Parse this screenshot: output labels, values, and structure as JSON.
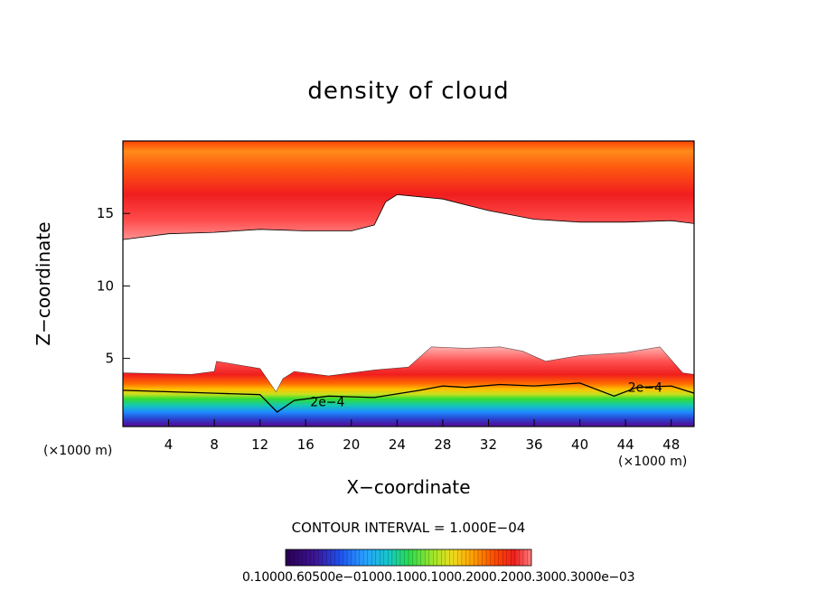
{
  "chart_data": {
    "type": "heatmap",
    "title": "density of cloud",
    "xlabel": "X−coordinate",
    "ylabel": "Z−coordinate",
    "x_unit": "(×1000 m)",
    "z_unit": "(×1000 m)",
    "xlim": [
      0,
      50
    ],
    "ylim": [
      0.3,
      20
    ],
    "x_ticks": [
      4,
      8,
      12,
      16,
      20,
      24,
      28,
      32,
      36,
      40,
      44,
      48
    ],
    "y_ticks": [
      5,
      10,
      15
    ],
    "contour_interval_label": "CONTOUR INTERVAL = 1.000E−04",
    "contour_labels": [
      "2e−4",
      "2e−4"
    ],
    "contour_label_positions": [
      [
        16.4,
        2.0
      ],
      [
        44.2,
        3.0
      ]
    ],
    "colorbar_labels": "0.10000.60500e−01000.1000.1000.2000.2000.3000.3000e−03",
    "colorbar_colors": [
      "#2a0050",
      "#3c1496",
      "#1e3cdc",
      "#1e8cff",
      "#14c8c8",
      "#14dc50",
      "#78e628",
      "#dcdc1e",
      "#ffb400",
      "#ff6e00",
      "#ff2800",
      "#f01e1e",
      "#ff7878",
      "#ffb4b4"
    ],
    "upper_layer": {
      "top": 19.6,
      "base_profile": [
        [
          0,
          13.2
        ],
        [
          4,
          13.6
        ],
        [
          8,
          13.7
        ],
        [
          12,
          13.9
        ],
        [
          16,
          13.8
        ],
        [
          20,
          13.8
        ],
        [
          22,
          14.2
        ],
        [
          23,
          15.8
        ],
        [
          24,
          16.3
        ],
        [
          28,
          16.0
        ],
        [
          32,
          15.2
        ],
        [
          36,
          14.6
        ],
        [
          40,
          14.4
        ],
        [
          44,
          14.4
        ],
        [
          48,
          14.5
        ],
        [
          50,
          14.3
        ]
      ]
    },
    "lower_layer": {
      "bottom": 0.3,
      "top_profile": [
        [
          0,
          4.0
        ],
        [
          6,
          3.9
        ],
        [
          8,
          4.1
        ],
        [
          8.2,
          4.8
        ],
        [
          12,
          4.3
        ],
        [
          13.4,
          2.7
        ],
        [
          14,
          3.6
        ],
        [
          15,
          4.1
        ],
        [
          18,
          3.8
        ],
        [
          22,
          4.2
        ],
        [
          25,
          4.4
        ],
        [
          27,
          5.8
        ],
        [
          30,
          5.7
        ],
        [
          33,
          5.8
        ],
        [
          35,
          5.5
        ],
        [
          37,
          4.8
        ],
        [
          40,
          5.2
        ],
        [
          44,
          5.4
        ],
        [
          47,
          5.8
        ],
        [
          49,
          4.0
        ],
        [
          50,
          3.9
        ]
      ],
      "contour_2e4": [
        [
          0,
          2.8
        ],
        [
          4,
          2.7
        ],
        [
          8,
          2.6
        ],
        [
          12,
          2.5
        ],
        [
          13.5,
          1.3
        ],
        [
          15,
          2.1
        ],
        [
          18,
          2.4
        ],
        [
          22,
          2.3
        ],
        [
          26,
          2.8
        ],
        [
          28,
          3.1
        ],
        [
          30,
          3.0
        ],
        [
          33,
          3.2
        ],
        [
          36,
          3.1
        ],
        [
          40,
          3.3
        ],
        [
          43,
          2.4
        ],
        [
          45,
          3.0
        ],
        [
          48,
          3.1
        ],
        [
          50,
          2.6
        ]
      ]
    }
  }
}
